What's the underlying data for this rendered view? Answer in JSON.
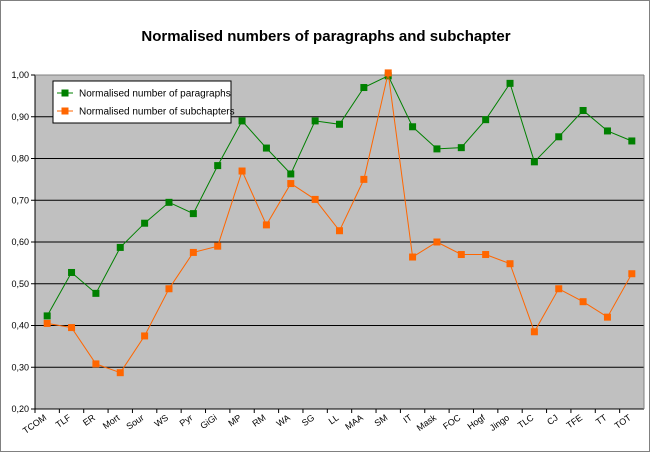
{
  "chart_data": {
    "type": "line",
    "title": "Normalised numbers of paragraphs and subchapter",
    "xlabel": "",
    "ylabel": "",
    "categories": [
      "TCOM",
      "TLF",
      "ER",
      "Mort",
      "Sour",
      "WS",
      "Pyr",
      "GiGi",
      "MP",
      "RM",
      "WA",
      "SG",
      "LL",
      "MAA",
      "SM",
      "IT",
      "Mask",
      "FOC",
      "Hogf",
      "Jingo",
      "TLC",
      "CJ",
      "TFE",
      "TT",
      "TOT"
    ],
    "ylim": [
      0.2,
      1.0
    ],
    "yticks": [
      "0,20",
      "0,30",
      "0,40",
      "0,50",
      "0,60",
      "0,70",
      "0,80",
      "0,90",
      "1,00"
    ],
    "grid": "horizontal",
    "legend_position": "top-left",
    "series": [
      {
        "name": "Normalised number of paragraphs",
        "color": "#008000",
        "values": [
          0.423,
          0.527,
          0.477,
          0.587,
          0.645,
          0.695,
          0.668,
          0.783,
          0.89,
          0.825,
          0.763,
          0.89,
          0.882,
          0.97,
          0.998,
          0.876,
          0.823,
          0.826,
          0.893,
          0.98,
          0.792,
          0.852,
          0.915,
          0.866,
          0.842
        ]
      },
      {
        "name": "Normalised number of subchapters",
        "color": "#ff6600",
        "values": [
          0.405,
          0.395,
          0.308,
          0.287,
          0.375,
          0.488,
          0.575,
          0.59,
          0.77,
          0.641,
          0.74,
          0.702,
          0.627,
          0.75,
          1.005,
          0.564,
          0.6,
          0.57,
          0.57,
          0.548,
          0.385,
          0.488,
          0.457,
          0.42,
          0.524
        ]
      }
    ],
    "plot_background": "#c0c0c0"
  }
}
